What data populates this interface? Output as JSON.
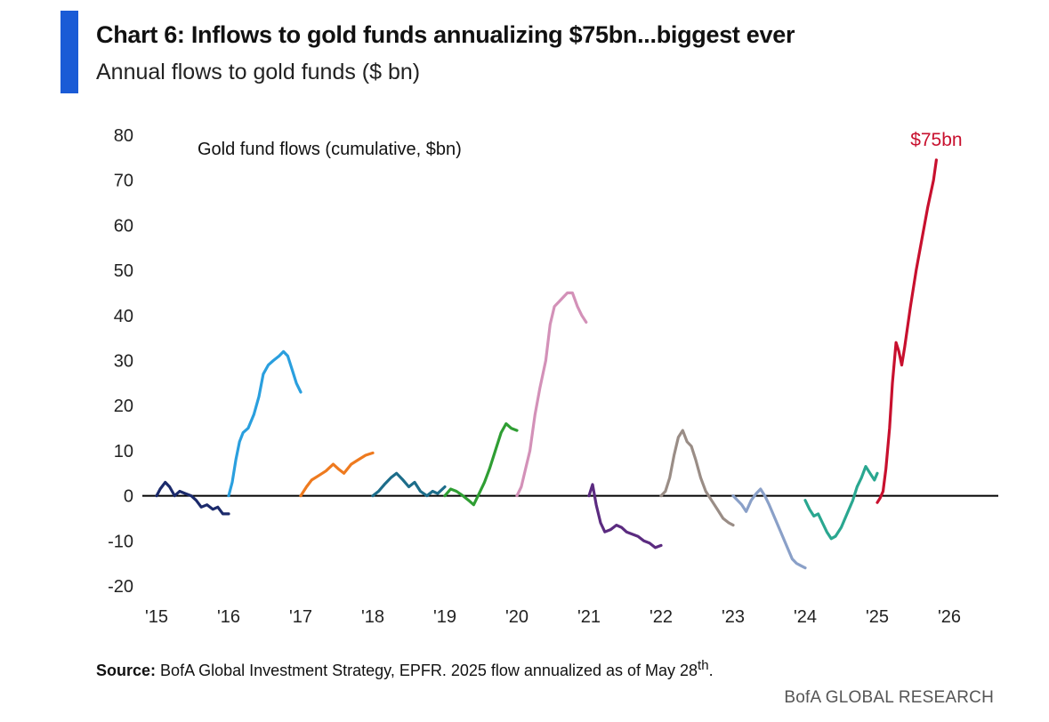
{
  "header": {
    "title": "Chart 6: Inflows to gold funds annualizing $75bn...biggest ever",
    "subtitle": "Annual flows to gold funds ($ bn)"
  },
  "footer": {
    "source_label": "Source:",
    "source_text": "BofA Global Investment Strategy, EPFR. 2025 flow annualized as of May 28",
    "source_sup": "th",
    "source_end": ".",
    "brand": "BofA GLOBAL RESEARCH"
  },
  "chart_data": {
    "type": "line",
    "title": "",
    "xlabel": "",
    "ylabel": "",
    "annotation": "Gold fund flows (cumulative, $bn)",
    "end_label": "$75bn",
    "ylim": [
      -20,
      80
    ],
    "yticks": [
      -20,
      -10,
      0,
      10,
      20,
      30,
      40,
      50,
      60,
      70,
      80
    ],
    "xlim": [
      2015,
      2026.45
    ],
    "xticks": [
      {
        "x": 2015,
        "label": "'15"
      },
      {
        "x": 2016,
        "label": "'16"
      },
      {
        "x": 2017,
        "label": "'17"
      },
      {
        "x": 2018,
        "label": "'18"
      },
      {
        "x": 2019,
        "label": "'19"
      },
      {
        "x": 2020,
        "label": "'20"
      },
      {
        "x": 2021,
        "label": "'21"
      },
      {
        "x": 2022,
        "label": "'22"
      },
      {
        "x": 2023,
        "label": "'23"
      },
      {
        "x": 2024,
        "label": "'24"
      },
      {
        "x": 2025,
        "label": "'25"
      },
      {
        "x": 2026,
        "label": "'26"
      }
    ],
    "zero_line": true,
    "grid": false,
    "series": [
      {
        "color": "#1b2a6b",
        "points": [
          [
            2015.0,
            0
          ],
          [
            2015.05,
            1.5
          ],
          [
            2015.12,
            3
          ],
          [
            2015.18,
            2
          ],
          [
            2015.25,
            0
          ],
          [
            2015.32,
            1
          ],
          [
            2015.4,
            0.5
          ],
          [
            2015.48,
            0
          ],
          [
            2015.55,
            -1
          ],
          [
            2015.62,
            -2.5
          ],
          [
            2015.7,
            -2
          ],
          [
            2015.78,
            -3
          ],
          [
            2015.85,
            -2.5
          ],
          [
            2015.92,
            -4
          ],
          [
            2016.0,
            -4
          ]
        ]
      },
      {
        "color": "#2a9fde",
        "points": [
          [
            2016.0,
            0
          ],
          [
            2016.05,
            3
          ],
          [
            2016.1,
            8
          ],
          [
            2016.15,
            12
          ],
          [
            2016.2,
            14
          ],
          [
            2016.27,
            15
          ],
          [
            2016.35,
            18
          ],
          [
            2016.42,
            22
          ],
          [
            2016.48,
            27
          ],
          [
            2016.55,
            29
          ],
          [
            2016.62,
            30
          ],
          [
            2016.7,
            31
          ],
          [
            2016.76,
            32
          ],
          [
            2016.82,
            31
          ],
          [
            2016.88,
            28
          ],
          [
            2016.94,
            25
          ],
          [
            2017.0,
            23
          ]
        ]
      },
      {
        "color": "#ee7a1f",
        "points": [
          [
            2017.0,
            0
          ],
          [
            2017.08,
            2
          ],
          [
            2017.15,
            3.5
          ],
          [
            2017.25,
            4.5
          ],
          [
            2017.35,
            5.5
          ],
          [
            2017.45,
            7
          ],
          [
            2017.52,
            6
          ],
          [
            2017.6,
            5
          ],
          [
            2017.7,
            7
          ],
          [
            2017.8,
            8
          ],
          [
            2017.9,
            9
          ],
          [
            2018.0,
            9.5
          ]
        ]
      },
      {
        "color": "#1d6d8a",
        "points": [
          [
            2018.0,
            0
          ],
          [
            2018.08,
            1
          ],
          [
            2018.16,
            2.5
          ],
          [
            2018.25,
            4
          ],
          [
            2018.33,
            5
          ],
          [
            2018.42,
            3.5
          ],
          [
            2018.5,
            2
          ],
          [
            2018.58,
            3
          ],
          [
            2018.66,
            1
          ],
          [
            2018.75,
            0
          ],
          [
            2018.83,
            1
          ],
          [
            2018.9,
            0.5
          ],
          [
            2019.0,
            2
          ]
        ]
      },
      {
        "color": "#2f9e33",
        "points": [
          [
            2019.0,
            0
          ],
          [
            2019.08,
            1.5
          ],
          [
            2019.16,
            1
          ],
          [
            2019.25,
            0
          ],
          [
            2019.33,
            -1
          ],
          [
            2019.4,
            -2
          ],
          [
            2019.46,
            0
          ],
          [
            2019.55,
            3
          ],
          [
            2019.62,
            6
          ],
          [
            2019.7,
            10
          ],
          [
            2019.78,
            14
          ],
          [
            2019.85,
            16
          ],
          [
            2019.92,
            15
          ],
          [
            2020.0,
            14.5
          ]
        ]
      },
      {
        "color": "#d391b8",
        "points": [
          [
            2020.0,
            0
          ],
          [
            2020.06,
            2
          ],
          [
            2020.12,
            6
          ],
          [
            2020.18,
            10
          ],
          [
            2020.25,
            18
          ],
          [
            2020.32,
            24
          ],
          [
            2020.4,
            30
          ],
          [
            2020.46,
            38
          ],
          [
            2020.52,
            42
          ],
          [
            2020.58,
            43
          ],
          [
            2020.64,
            44
          ],
          [
            2020.7,
            45
          ],
          [
            2020.77,
            45
          ],
          [
            2020.84,
            42
          ],
          [
            2020.9,
            40
          ],
          [
            2020.96,
            38.5
          ]
        ]
      },
      {
        "color": "#5b2b80",
        "points": [
          [
            2021.0,
            0
          ],
          [
            2021.05,
            2.5
          ],
          [
            2021.1,
            -2
          ],
          [
            2021.16,
            -6
          ],
          [
            2021.22,
            -8
          ],
          [
            2021.3,
            -7.5
          ],
          [
            2021.38,
            -6.5
          ],
          [
            2021.45,
            -7
          ],
          [
            2021.52,
            -8
          ],
          [
            2021.6,
            -8.5
          ],
          [
            2021.68,
            -9
          ],
          [
            2021.76,
            -10
          ],
          [
            2021.84,
            -10.5
          ],
          [
            2021.92,
            -11.5
          ],
          [
            2022.0,
            -11
          ]
        ]
      },
      {
        "color": "#9a8d86",
        "points": [
          [
            2022.0,
            0
          ],
          [
            2022.06,
            1
          ],
          [
            2022.12,
            4
          ],
          [
            2022.18,
            9
          ],
          [
            2022.24,
            13
          ],
          [
            2022.3,
            14.5
          ],
          [
            2022.36,
            12
          ],
          [
            2022.42,
            11
          ],
          [
            2022.48,
            8
          ],
          [
            2022.55,
            4
          ],
          [
            2022.62,
            1
          ],
          [
            2022.7,
            -1
          ],
          [
            2022.78,
            -3
          ],
          [
            2022.86,
            -5
          ],
          [
            2022.94,
            -6
          ],
          [
            2023.0,
            -6.5
          ]
        ]
      },
      {
        "color": "#8aa0c8",
        "points": [
          [
            2023.0,
            0
          ],
          [
            2023.06,
            -1
          ],
          [
            2023.12,
            -2
          ],
          [
            2023.18,
            -3.5
          ],
          [
            2023.25,
            -1
          ],
          [
            2023.32,
            0.5
          ],
          [
            2023.38,
            1.5
          ],
          [
            2023.44,
            0
          ],
          [
            2023.5,
            -2
          ],
          [
            2023.58,
            -5
          ],
          [
            2023.66,
            -8
          ],
          [
            2023.74,
            -11
          ],
          [
            2023.82,
            -14
          ],
          [
            2023.88,
            -15
          ],
          [
            2023.94,
            -15.5
          ],
          [
            2024.0,
            -16
          ]
        ]
      },
      {
        "color": "#2aa790",
        "points": [
          [
            2024.0,
            -1
          ],
          [
            2024.06,
            -3
          ],
          [
            2024.12,
            -4.5
          ],
          [
            2024.18,
            -4
          ],
          [
            2024.24,
            -6
          ],
          [
            2024.3,
            -8
          ],
          [
            2024.36,
            -9.5
          ],
          [
            2024.42,
            -9
          ],
          [
            2024.5,
            -7
          ],
          [
            2024.58,
            -4
          ],
          [
            2024.66,
            -1
          ],
          [
            2024.72,
            2
          ],
          [
            2024.78,
            4
          ],
          [
            2024.84,
            6.5
          ],
          [
            2024.9,
            5
          ],
          [
            2024.96,
            3.5
          ],
          [
            2025.0,
            5
          ]
        ]
      },
      {
        "color": "#c8102e",
        "points": [
          [
            2025.0,
            -1.5
          ],
          [
            2025.04,
            -0.5
          ],
          [
            2025.08,
            1
          ],
          [
            2025.12,
            6
          ],
          [
            2025.17,
            15
          ],
          [
            2025.21,
            25
          ],
          [
            2025.26,
            34
          ],
          [
            2025.3,
            32
          ],
          [
            2025.34,
            29
          ],
          [
            2025.38,
            33
          ],
          [
            2025.46,
            42
          ],
          [
            2025.54,
            50
          ],
          [
            2025.62,
            57
          ],
          [
            2025.7,
            64
          ],
          [
            2025.78,
            70
          ],
          [
            2025.82,
            74.5
          ]
        ]
      }
    ]
  }
}
